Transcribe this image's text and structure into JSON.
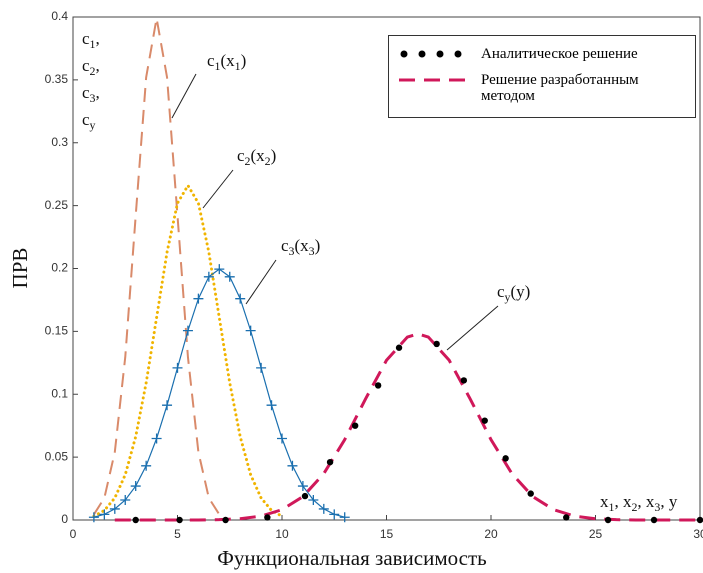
{
  "chart_data": {
    "type": "line",
    "xlabel": "Функциональная зависимость",
    "ylabel": "ПРВ",
    "xlim": [
      0,
      30
    ],
    "xticks": [
      0,
      5,
      10,
      15,
      20,
      25,
      30
    ],
    "ylim": [
      0,
      0.4
    ],
    "yticks": [
      0,
      0.05,
      0.1,
      0.15,
      0.2,
      0.25,
      0.3,
      0.35,
      0.4
    ],
    "corner_label": [
      {
        "parts": [
          "c",
          "1",
          ","
        ]
      },
      {
        "parts": [
          "c",
          "2",
          ","
        ]
      },
      {
        "parts": [
          "c",
          "3",
          ","
        ]
      },
      {
        "parts": [
          "c",
          "y"
        ]
      }
    ],
    "axis_variables": {
      "parts": [
        "x",
        "1",
        ", x",
        "2",
        ", x",
        "3",
        ", y"
      ]
    },
    "series": [
      {
        "label": {
          "parts": [
            "c",
            "1",
            "(x",
            "1",
            ")"
          ]
        },
        "color": "#d98a6a",
        "style": "dash",
        "x": [
          1,
          1.5,
          2,
          2.5,
          3,
          3.5,
          4,
          4.5,
          5,
          5.5,
          6,
          6.5,
          7
        ],
        "values": [
          0.0044,
          0.0175,
          0.054,
          0.1295,
          0.242,
          0.352,
          0.399,
          0.352,
          0.242,
          0.1295,
          0.054,
          0.0175,
          0.0044
        ]
      },
      {
        "label": {
          "parts": [
            "c",
            "2",
            "(x",
            "2",
            ")"
          ]
        },
        "color": "#f0b400",
        "style": "dot",
        "x": [
          1,
          1.5,
          2,
          2.5,
          3,
          3.5,
          4,
          4.5,
          5,
          5.5,
          6,
          6.5,
          7,
          7.5,
          8,
          8.5,
          9,
          9.5,
          10
        ],
        "values": [
          0.003,
          0.0076,
          0.0175,
          0.036,
          0.0663,
          0.109,
          0.161,
          0.213,
          0.252,
          0.266,
          0.252,
          0.213,
          0.161,
          0.109,
          0.0663,
          0.036,
          0.0175,
          0.0076,
          0.003
        ]
      },
      {
        "label": {
          "parts": [
            "c",
            "3",
            "(x",
            "3",
            ")"
          ]
        },
        "color": "#1a6faf",
        "style": "plus",
        "x": [
          1,
          1.5,
          2,
          2.5,
          3,
          3.5,
          4,
          4.5,
          5,
          5.5,
          6,
          6.5,
          7,
          7.5,
          8,
          8.5,
          9,
          9.5,
          10,
          10.5,
          11,
          11.5,
          12,
          12.5,
          13
        ],
        "values": [
          0.0022,
          0.0045,
          0.0088,
          0.0159,
          0.027,
          0.0431,
          0.0648,
          0.0913,
          0.121,
          0.1506,
          0.176,
          0.1934,
          0.1995,
          0.1934,
          0.176,
          0.1506,
          0.121,
          0.0913,
          0.0648,
          0.0431,
          0.027,
          0.0159,
          0.0088,
          0.0045,
          0.0022
        ]
      },
      {
        "name": "Решение разработанным методом",
        "label": {
          "parts": [
            "c",
            "y",
            "(y)"
          ]
        },
        "color": "#d0185a",
        "style": "dash",
        "x": [
          2,
          3,
          4,
          5,
          6,
          7,
          8,
          9,
          10,
          11,
          12,
          13,
          14,
          15,
          16,
          16.5,
          17,
          18,
          19,
          20,
          21,
          22,
          23,
          24,
          25,
          26,
          27,
          28,
          29,
          30
        ],
        "values": [
          0,
          0,
          0,
          0,
          0,
          0.0003,
          0.001,
          0.0031,
          0.0082,
          0.0186,
          0.0369,
          0.0639,
          0.0964,
          0.127,
          0.1455,
          0.148,
          0.1455,
          0.127,
          0.0964,
          0.0639,
          0.0369,
          0.0186,
          0.0082,
          0.0031,
          0.001,
          0.0003,
          0,
          0,
          0,
          0
        ]
      },
      {
        "name": "Аналитическое решение",
        "color": "#000000",
        "style": "dots",
        "x": [
          3,
          5.1,
          7.3,
          9.3,
          11.1,
          12.3,
          13.5,
          14.6,
          15.6,
          17.4,
          18.7,
          19.7,
          20.7,
          21.9,
          23.6,
          25.6,
          27.8,
          30
        ],
        "values": [
          0,
          0,
          0,
          0.002,
          0.019,
          0.046,
          0.075,
          0.107,
          0.137,
          0.14,
          0.111,
          0.079,
          0.049,
          0.021,
          0.002,
          0,
          0,
          0
        ]
      }
    ]
  }
}
